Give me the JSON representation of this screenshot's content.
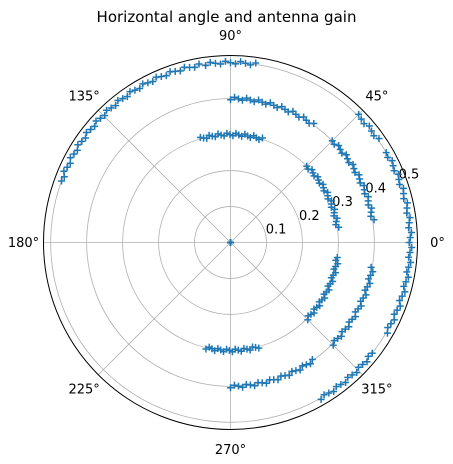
{
  "chart_data": {
    "type": "scatter",
    "projection": "polar",
    "title": "Horizontal angle and antenna gain",
    "angle_unit": "degrees",
    "theta_tick_labels": [
      "0°",
      "45°",
      "90°",
      "135°",
      "180°",
      "225°",
      "270°",
      "315°"
    ],
    "theta_ticks": [
      0,
      45,
      90,
      135,
      180,
      225,
      270,
      315
    ],
    "r_tick_labels": [
      "0.1",
      "0.2",
      "0.3",
      "0.4",
      "0.5"
    ],
    "r_ticks": [
      0.1,
      0.2,
      0.3,
      0.4,
      0.5
    ],
    "rlim": [
      0,
      0.52
    ],
    "r_label_angle_deg": 22.5,
    "grid": true,
    "marker": "+",
    "color": "#1f77b4",
    "series": [
      {
        "segments": [
          {
            "r": 0.5,
            "theta_from": -30,
            "theta_to": 30
          },
          {
            "r": 0.5,
            "theta_from": 35,
            "theta_to": 45
          },
          {
            "r": 0.5,
            "theta_from": 82,
            "theta_to": 98
          },
          {
            "r": 0.5,
            "theta_from": 100,
            "theta_to": 160
          },
          {
            "r": 0.5,
            "theta_from": 300,
            "theta_to": 322
          },
          {
            "r": 0.4,
            "theta_from": 55,
            "theta_to": 90
          },
          {
            "r": 0.4,
            "theta_from": 9,
            "theta_to": 45
          },
          {
            "r": 0.4,
            "theta_from": 270,
            "theta_to": 305
          },
          {
            "r": 0.4,
            "theta_from": 315,
            "theta_to": 350
          },
          {
            "r": 0.3,
            "theta_from": 8,
            "theta_to": 45
          },
          {
            "r": 0.3,
            "theta_from": 73,
            "theta_to": 106
          },
          {
            "r": 0.3,
            "theta_from": 257,
            "theta_to": 285
          },
          {
            "r": 0.3,
            "theta_from": 315,
            "theta_to": 352
          },
          {
            "r": 0.0,
            "theta_from": 0,
            "theta_to": 360
          }
        ]
      }
    ]
  }
}
